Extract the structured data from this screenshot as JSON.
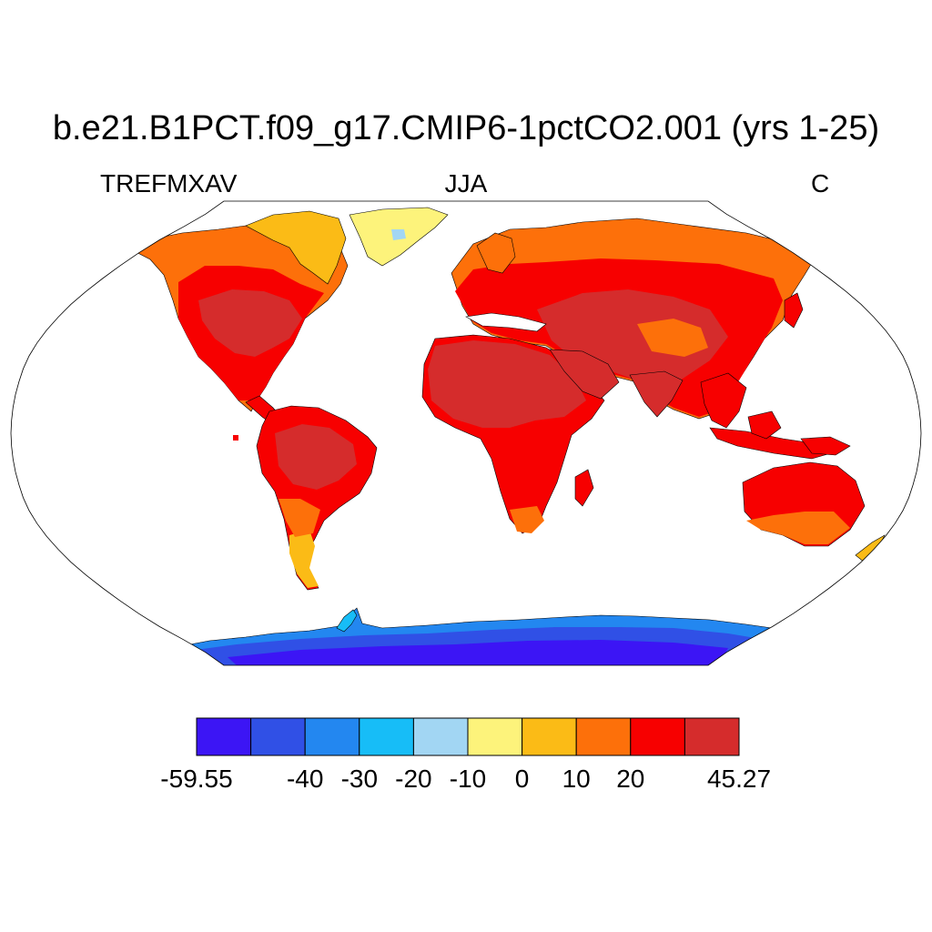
{
  "title": "b.e21.B1PCT.f09_g17.CMIP6-1pctCO2.001 (yrs 1-25)",
  "left_label": "TREFMXAV",
  "center_label": "JJA",
  "right_label": "C",
  "colorbar": {
    "colors": [
      "#3c15f5",
      "#3050e6",
      "#2387f0",
      "#17bdf7",
      "#a2d6f3",
      "#fdf37b",
      "#fbbb16",
      "#fd700a",
      "#f70000",
      "#d52c2c"
    ],
    "tick_labels": [
      "-59.55",
      "-40",
      "-30",
      "-20",
      "-10",
      "0",
      "10",
      "20",
      "45.27"
    ]
  },
  "map": {
    "projection": "Robinson",
    "ocean_color": "#ffffff",
    "outline_color": "#000000"
  }
}
